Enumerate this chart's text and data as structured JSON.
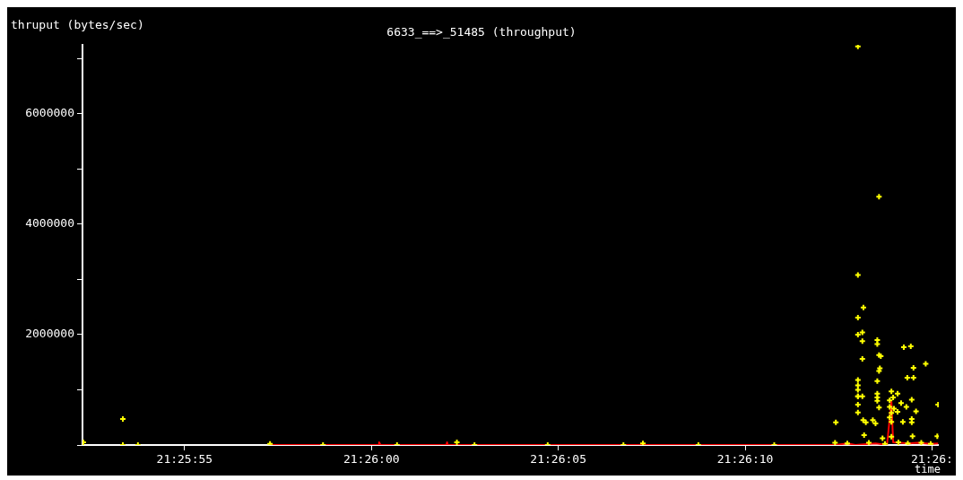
{
  "chart_data": {
    "type": "scatter",
    "title": "6633_==>_51485 (throughput)",
    "ylabel": "thruput (bytes/sec)",
    "xlabel": "time",
    "xlim": [
      21.431185,
      21.43755
    ],
    "ylim": [
      0,
      7250000
    ],
    "xticks": [
      {
        "value": 21.431944,
        "label": "21:25:55"
      },
      {
        "value": 21.433333,
        "label": "21:26:00"
      },
      {
        "value": 21.434722,
        "label": "21:26:05"
      },
      {
        "value": 21.436111,
        "label": "21:26:10"
      },
      {
        "value": 21.4375,
        "label": "21:26:"
      }
    ],
    "yticks": [
      {
        "value": 0,
        "label": null
      },
      {
        "value": 1000000,
        "label": null
      },
      2000000,
      {
        "value": 3000000,
        "label": null
      },
      4000000,
      {
        "value": 5000000,
        "label": null
      },
      6000000,
      {
        "value": 7000000,
        "label": null
      }
    ],
    "grid": false,
    "legend": false,
    "series": [
      {
        "type": "line",
        "color": "#ff0000",
        "marker": "none",
        "line_style": "solid",
        "x": [
          21.432579,
          21.433385,
          21.43339,
          21.4334,
          21.43389,
          21.433895,
          21.4339,
          21.436785,
          21.43687,
          21.43693,
          21.43708,
          21.437165,
          21.437198,
          21.437211,
          21.43733,
          21.437394,
          21.437493,
          21.437545
        ],
        "values": [
          0,
          0,
          50000,
          0,
          0,
          50000,
          0,
          0,
          30000,
          0,
          30000,
          0,
          780000,
          50000,
          30000,
          40000,
          20000,
          30000
        ]
      },
      {
        "color": "#ffff00",
        "marker": "cross",
        "x": [
          21.431191,
          21.431485,
          21.431485,
          21.431597,
          21.432579,
          21.432973,
          21.433523,
          21.433968,
          21.434099,
          21.434643,
          21.435206,
          21.435351,
          21.435763,
          21.436327,
          21.436779,
          21.436949,
          21.436949,
          21.437106,
          21.436949,
          21.43699,
          21.436949,
          21.436982,
          21.436949,
          21.436982,
          21.437093,
          21.437093,
          21.43729,
          21.437342,
          21.437106,
          21.437119,
          21.436982,
          21.437453,
          21.437362,
          21.437112,
          21.437106,
          21.436949,
          21.436949,
          21.436949,
          21.437093,
          21.437316,
          21.437362,
          21.437198,
          21.437244,
          21.436949,
          21.436982,
          21.437093,
          21.437093,
          21.437093,
          21.437349,
          21.43727,
          21.437309,
          21.436949,
          21.437545,
          21.437106,
          21.436949,
          21.437381,
          21.437185,
          21.437198,
          21.437244,
          21.436988,
          21.437008,
          21.43706,
          21.43708,
          21.436785,
          21.437198,
          21.437283,
          21.437349,
          21.437349,
          21.436995,
          21.437355,
          21.437539,
          21.437132,
          21.437198,
          21.437185,
          21.437211,
          21.437185,
          21.437217,
          21.43687,
          21.43703,
          21.43715,
          21.43725,
          21.43732,
          21.43742,
          21.43749
        ],
        "values": [
          50000,
          470000,
          0,
          0,
          20000,
          0,
          0,
          50000,
          0,
          0,
          0,
          30000,
          0,
          0,
          40000,
          7220000,
          3080000,
          4500000,
          2310000,
          2490000,
          2000000,
          2040000,
          1180000,
          1880000,
          1900000,
          1830000,
          1770000,
          1790000,
          1630000,
          1610000,
          1560000,
          1470000,
          1400000,
          1390000,
          1340000,
          1080000,
          1000000,
          880000,
          1160000,
          1220000,
          1220000,
          970000,
          930000,
          880000,
          880000,
          930000,
          860000,
          800000,
          820000,
          760000,
          690000,
          730000,
          730000,
          680000,
          590000,
          610000,
          690000,
          580000,
          600000,
          450000,
          410000,
          450000,
          390000,
          410000,
          420000,
          420000,
          470000,
          410000,
          180000,
          160000,
          160000,
          120000,
          150000,
          810000,
          860000,
          500000,
          660000,
          30000,
          40000,
          20000,
          50000,
          30000,
          40000,
          20000
        ]
      }
    ]
  }
}
